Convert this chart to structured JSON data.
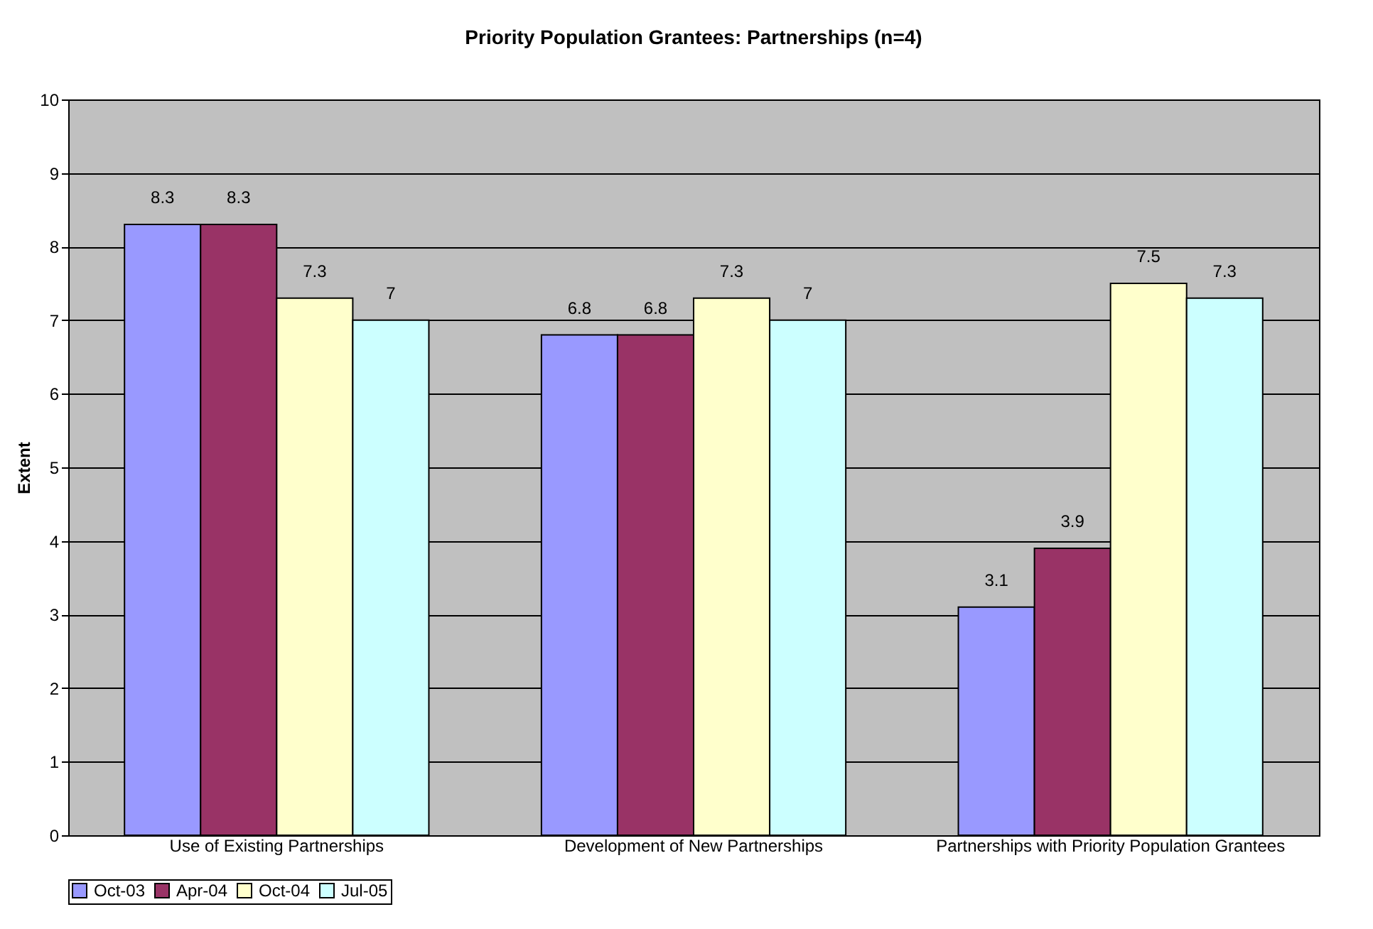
{
  "chart_data": {
    "type": "bar",
    "title": "Priority Population Grantees: Partnerships (n=4)",
    "ylabel": "Extent",
    "categories": [
      "Use of Existing Partnerships",
      "Development of New Partnerships",
      "Partnerships with Priority Population Grantees"
    ],
    "series": [
      {
        "name": "Oct-03",
        "color": "#9999ff",
        "values": [
          8.3,
          6.8,
          3.1
        ]
      },
      {
        "name": "Apr-04",
        "color": "#993366",
        "values": [
          8.3,
          6.8,
          3.9
        ]
      },
      {
        "name": "Oct-04",
        "color": "#ffffcc",
        "values": [
          7.3,
          7.3,
          7.5
        ]
      },
      {
        "name": "Jul-05",
        "color": "#ccffff",
        "values": [
          7,
          7,
          7.3
        ]
      }
    ],
    "ylim": [
      0,
      10
    ],
    "yticks": [
      0,
      1,
      2,
      3,
      4,
      5,
      6,
      7,
      8,
      9,
      10
    ],
    "grid": "y",
    "legend": "bottom",
    "data_labels": true
  }
}
